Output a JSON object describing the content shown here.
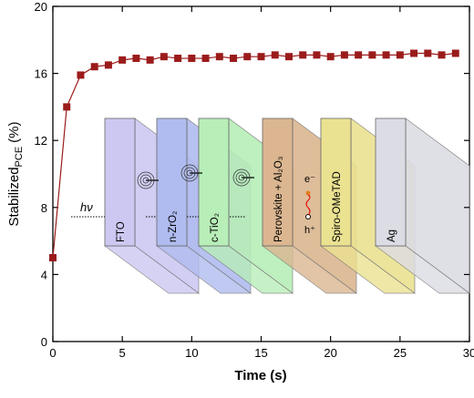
{
  "chart_data": {
    "type": "line",
    "marker": "square",
    "color": "#9b1b1b",
    "ylabel": {
      "main": "Stabilized",
      "sub": "PCE",
      "unit": "(%)"
    },
    "xlabel": "Time (s)",
    "x": [
      0,
      1,
      2,
      3,
      4,
      5,
      6,
      7,
      8,
      9,
      10,
      11,
      12,
      13,
      14,
      15,
      16,
      17,
      18,
      19,
      20,
      21,
      22,
      23,
      24,
      25,
      26,
      27,
      28,
      29
    ],
    "values": [
      5,
      14,
      15.9,
      16.4,
      16.5,
      16.8,
      16.9,
      16.8,
      17,
      16.9,
      16.9,
      16.9,
      17,
      16.9,
      17,
      17,
      17.1,
      17,
      17.1,
      17.1,
      17,
      17.1,
      17.1,
      17.1,
      17.1,
      17.1,
      17.2,
      17.2,
      17.1,
      17.2
    ],
    "xlim": [
      0,
      30
    ],
    "xticks": [
      0,
      5,
      10,
      15,
      20,
      25,
      30
    ],
    "ylim": [
      0,
      20
    ],
    "yticks": [
      0,
      4,
      8,
      12,
      16,
      20
    ],
    "inset": {
      "light": "hν",
      "electron": "e⁻",
      "hole": "h⁺",
      "layers": [
        {
          "label": "FTO",
          "color": "#cdc8f2"
        },
        {
          "label": "n-ZrO₂",
          "color": "#b0bcef"
        },
        {
          "label": "c-TiO₂",
          "color": "#b8eeb8"
        },
        {
          "label": "Perovskite + Al₂O₃",
          "color": "#dbb690"
        },
        {
          "label": "Spiro-OMeTAD",
          "color": "#ebe291"
        },
        {
          "label": "Ag",
          "color": "#dcdce4"
        }
      ]
    }
  }
}
